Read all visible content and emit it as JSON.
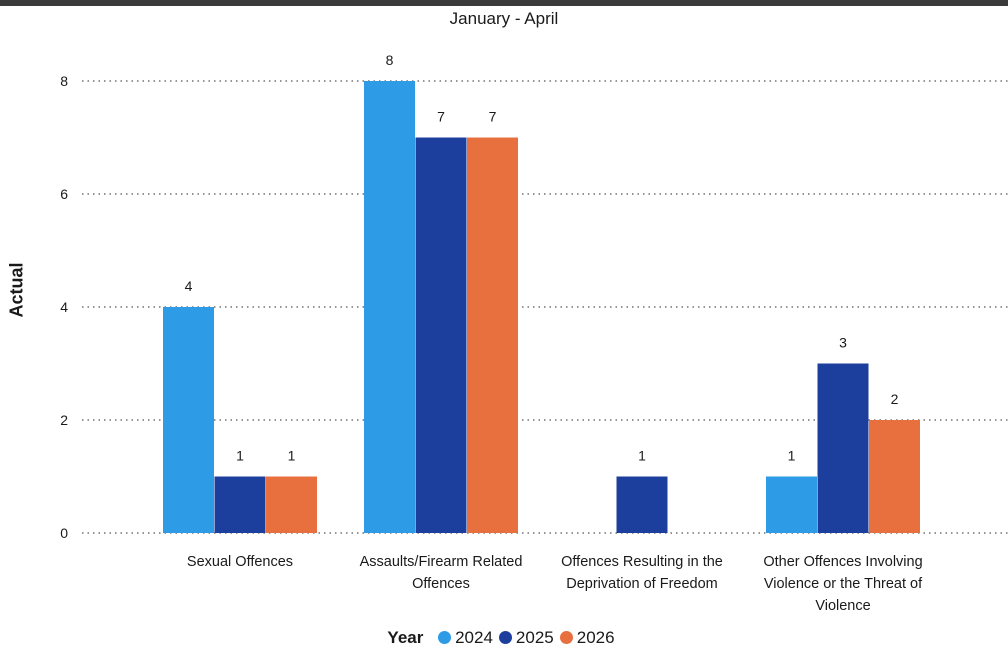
{
  "chart_data": {
    "type": "bar",
    "title": "January - April",
    "ylabel": "Actual",
    "xlabel": "",
    "ylim": [
      0,
      8
    ],
    "yticks": [
      0,
      2,
      4,
      6,
      8
    ],
    "grid": true,
    "legend_placement": "bottom",
    "legend_title": "Year",
    "categories": [
      [
        "Sexual Offences"
      ],
      [
        "Assaults/Firearm Related",
        "Offences"
      ],
      [
        "Offences Resulting in the",
        "Deprivation of Freedom"
      ],
      [
        "Other Offences Involving",
        "Violence or the Threat of",
        "Violence"
      ]
    ],
    "series": [
      {
        "name": "2024",
        "color": "#2E9BE6",
        "values": [
          4,
          8,
          null,
          1
        ]
      },
      {
        "name": "2025",
        "color": "#1C3F9E",
        "values": [
          1,
          7,
          1,
          3
        ]
      },
      {
        "name": "2026",
        "color": "#E8703F",
        "values": [
          1,
          7,
          null,
          2
        ]
      }
    ]
  }
}
